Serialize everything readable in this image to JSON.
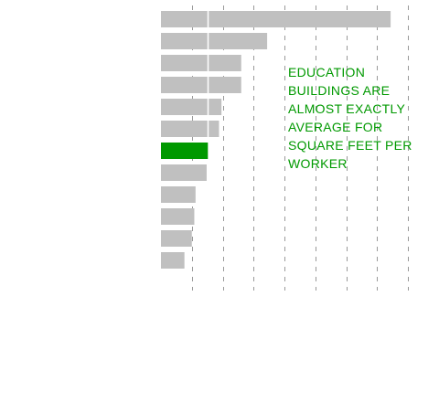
{
  "chart_data": {
    "type": "bar",
    "orientation": "horizontal",
    "categories": [
      "",
      "",
      "",
      "",
      "",
      "",
      "",
      "",
      "",
      "",
      "",
      ""
    ],
    "values": [
      1860,
      860,
      650,
      650,
      490,
      470,
      380,
      370,
      280,
      270,
      250,
      190
    ],
    "average": 380,
    "highlight_index": 6,
    "xlim": [
      0,
      2000
    ],
    "grid": true,
    "colors": {
      "bar": "#c0c0c0",
      "highlight": "#009900",
      "average_line": "#ffffff",
      "grid": "#999999",
      "annotation": "#009900"
    },
    "annotation": "EDUCATION\nBUILDINGS ARE\nALMOST EXACTLY\nAVERAGE FOR\nSQUARE FEET PER\nWORKER"
  }
}
